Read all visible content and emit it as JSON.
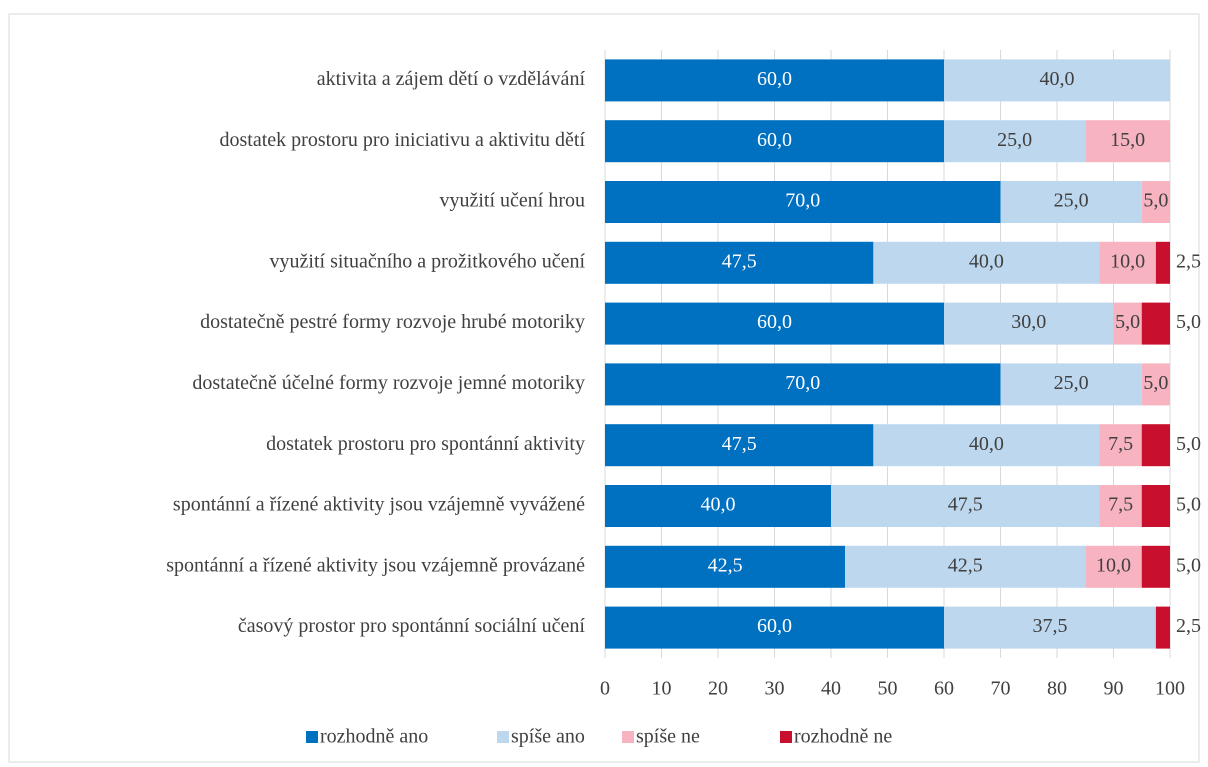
{
  "chart_data": {
    "type": "stacked_bar_horizontal",
    "categories": [
      "aktivita a zájem dětí o vzdělávání",
      "dostatek prostoru pro iniciativu a aktivitu dětí",
      "využití učení hrou",
      "využití situačního a prožitkového učení",
      "dostatečně pestré formy rozvoje hrubé motoriky",
      "dostatečně účelné formy rozvoje jemné motoriky",
      "dostatek prostoru pro spontánní aktivity",
      "spontánní a řízené aktivity jsou vzájemně vyvážené",
      "spontánní a řízené aktivity jsou vzájemně provázané",
      "časový prostor pro spontánní sociální učení"
    ],
    "series": [
      {
        "name": "rozhodně ano",
        "color": "#0070c0",
        "values": [
          60,
          60,
          70,
          47.5,
          60,
          70,
          47.5,
          40,
          42.5,
          60
        ],
        "value_labels": [
          "60,0",
          "60,0",
          "70,0",
          "47,5",
          "60,0",
          "70,0",
          "47,5",
          "40,0",
          "42,5",
          "60,0"
        ]
      },
      {
        "name": "spíše ano",
        "color": "#bdd7ee",
        "values": [
          40,
          25,
          25,
          40,
          30,
          25,
          40,
          47.5,
          42.5,
          37.5
        ],
        "value_labels": [
          "40,0",
          "25,0",
          "25,0",
          "40,0",
          "30,0",
          "25,0",
          "40,0",
          "47,5",
          "42,5",
          "37,5"
        ]
      },
      {
        "name": "spíše ne",
        "color": "#f7b3c0",
        "values": [
          0,
          15,
          5,
          10,
          5,
          5,
          7.5,
          7.5,
          10,
          0
        ],
        "value_labels": [
          null,
          "15,0",
          "5,0",
          "10,0",
          "5,0",
          "5,0",
          "7,5",
          "7,5",
          "10,0",
          null
        ]
      },
      {
        "name": "rozhodně ne",
        "color": "#c8102e",
        "values": [
          0,
          0,
          0,
          2.5,
          5,
          0,
          5,
          5,
          5,
          2.5
        ],
        "value_labels": [
          null,
          null,
          null,
          "2,5",
          "5,0",
          null,
          "5,0",
          "5,0",
          "5,0",
          "2,5"
        ]
      }
    ],
    "xlim": [
      0,
      100
    ],
    "xticks": [
      0,
      10,
      20,
      30,
      40,
      50,
      60,
      70,
      80,
      90,
      100
    ],
    "grid": true,
    "legend": "bottom"
  }
}
